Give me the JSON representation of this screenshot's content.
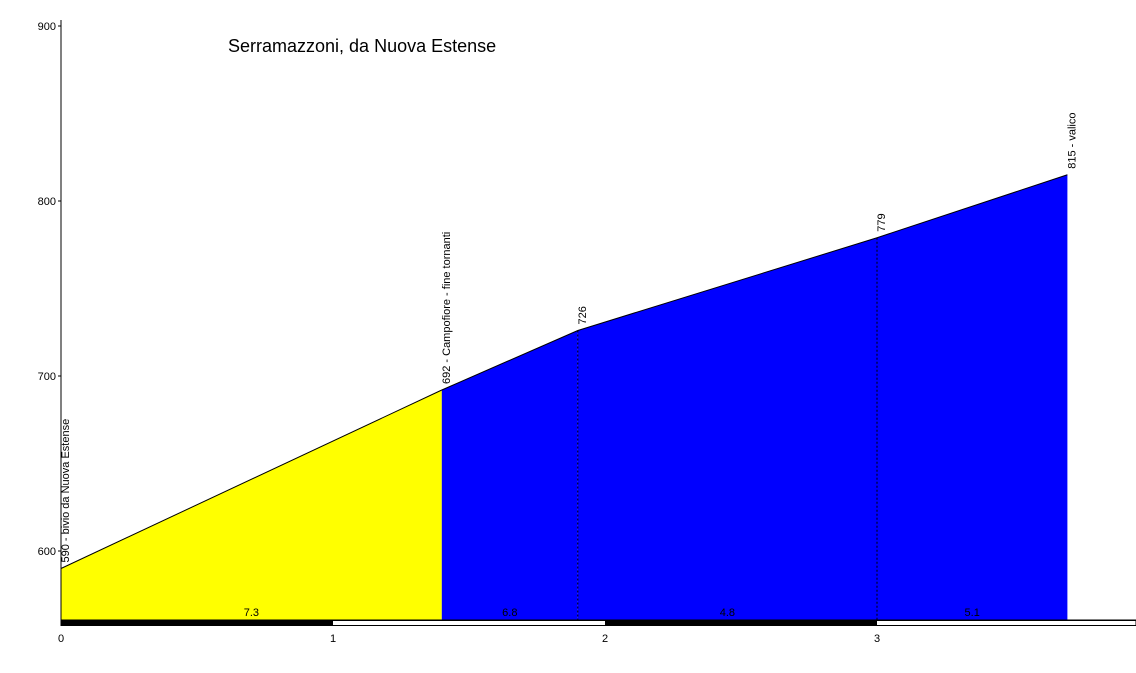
{
  "chart_data": {
    "type": "area",
    "title": "Serramazzoni, da Nuova Estense",
    "xlabel": "",
    "ylabel": "",
    "xlim": [
      0,
      3.97
    ],
    "ylim": [
      557,
      900
    ],
    "x_ticks": [
      0,
      1,
      2,
      3
    ],
    "y_ticks": [
      600,
      700,
      800,
      900
    ],
    "profile": [
      {
        "x": 0,
        "y": 590
      },
      {
        "x": 1.4,
        "y": 692
      },
      {
        "x": 1.9,
        "y": 726
      },
      {
        "x": 3.0,
        "y": 779
      },
      {
        "x": 3.7,
        "y": 815
      }
    ],
    "segments": [
      {
        "from": 0,
        "to": 1.4,
        "gradient": "7.3",
        "color": "#ffff00"
      },
      {
        "from": 1.4,
        "to": 1.9,
        "gradient": "6.8",
        "color": "#0000ff"
      },
      {
        "from": 1.9,
        "to": 3.0,
        "gradient": "4.8",
        "color": "#0000ff"
      },
      {
        "from": 3.0,
        "to": 3.7,
        "gradient": "5.1",
        "color": "#0000ff"
      }
    ],
    "annotations": [
      {
        "x": 0,
        "y": 590,
        "label": "590 - bivio da Nuova Estense"
      },
      {
        "x": 1.4,
        "y": 692,
        "label": "692 - Campofiore - fine tornanti"
      },
      {
        "x": 1.9,
        "y": 726,
        "label": "726"
      },
      {
        "x": 3.0,
        "y": 779,
        "label": "779"
      },
      {
        "x": 3.7,
        "y": 815,
        "label": "815 - valico"
      }
    ],
    "grid": false
  }
}
